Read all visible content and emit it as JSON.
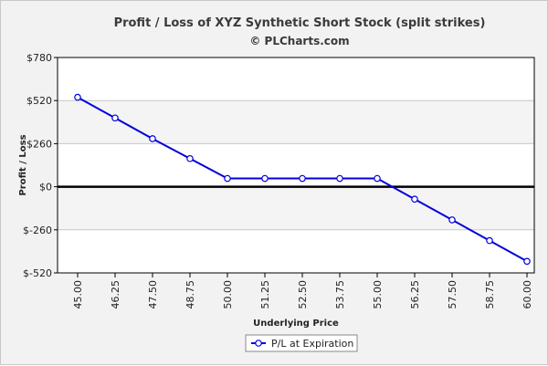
{
  "chart_data": {
    "type": "line",
    "title": "Profit / Loss of XYZ Synthetic Short Stock (split strikes)",
    "subtitle": "© PLCharts.com",
    "xlabel": "Underlying Price",
    "ylabel": "Profit / Loss",
    "x": [
      "45.00",
      "46.25",
      "47.50",
      "48.75",
      "50.00",
      "51.25",
      "52.50",
      "53.75",
      "55.00",
      "56.25",
      "57.50",
      "58.75",
      "60.00"
    ],
    "y_ticks": [
      780,
      520,
      260,
      0,
      -260,
      -520
    ],
    "y_tick_labels": [
      "$780",
      "$520",
      "$260",
      "$0",
      "$-260",
      "$-520"
    ],
    "ylim": [
      -520,
      780
    ],
    "grid": true,
    "legend_position": "bottom-center",
    "series": [
      {
        "name": "P/L at Expiration",
        "color": "#0000dd",
        "values": [
          540,
          415,
          290,
          170,
          50,
          50,
          50,
          50,
          50,
          -75,
          -200,
          -325,
          -450
        ]
      }
    ]
  }
}
